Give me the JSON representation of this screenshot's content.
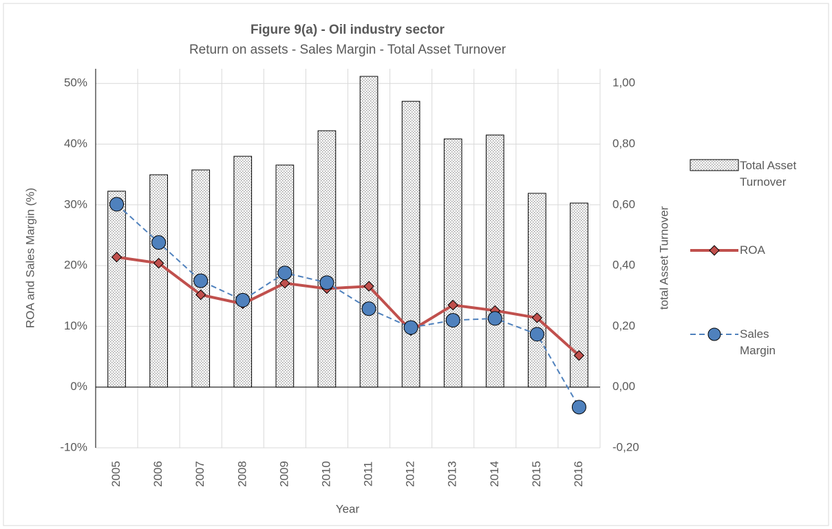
{
  "chart_data": {
    "type": "bar-line",
    "title": "Figure 9(a) - Oil industry sector",
    "subtitle": "Return on assets - Sales Margin - Total Asset Turnover",
    "x_label": "Year",
    "y_label": "ROA and Sales Margin (%)",
    "y2_label": "total Asset Turnover",
    "categories": [
      "2005",
      "2006",
      "2007",
      "2008",
      "2009",
      "2010",
      "2011",
      "2012",
      "2013",
      "2014",
      "2015",
      "2016"
    ],
    "series": [
      {
        "name": "Total Asset Turnover",
        "type": "bar",
        "axis": "y2",
        "color": "#595959",
        "values": [
          0.645,
          0.699,
          0.715,
          0.76,
          0.731,
          0.844,
          1.023,
          0.941,
          0.817,
          0.83,
          0.638,
          0.606
        ]
      },
      {
        "name": "ROA",
        "type": "line",
        "color": "#c0504d",
        "values": [
          21.4,
          20.4,
          15.2,
          13.7,
          17.1,
          16.2,
          16.6,
          9.3,
          13.5,
          12.6,
          11.4,
          5.2
        ]
      },
      {
        "name": "Sales Margin",
        "type": "line",
        "dashed": true,
        "color": "#4f81bd",
        "values": [
          30.1,
          23.8,
          17.5,
          14.3,
          18.8,
          17.2,
          12.9,
          9.8,
          11.0,
          11.3,
          8.7,
          -3.3
        ]
      }
    ],
    "ylim": [
      -10,
      52.4
    ],
    "yticks": [
      {
        "value": -10,
        "label": "-10%"
      },
      {
        "value": 0,
        "label": "0%"
      },
      {
        "value": 10,
        "label": "10%"
      },
      {
        "value": 20,
        "label": "20%"
      },
      {
        "value": 30,
        "label": "30%"
      },
      {
        "value": 40,
        "label": "40%"
      },
      {
        "value": 50,
        "label": "50%"
      }
    ],
    "y2lim": [
      -0.2,
      1.048
    ],
    "y2ticks": [
      {
        "value": -0.2,
        "label": "-0,20"
      },
      {
        "value": 0,
        "label": "0,00"
      },
      {
        "value": 0.2,
        "label": "0,20"
      },
      {
        "value": 0.4,
        "label": "0,40"
      },
      {
        "value": 0.6,
        "label": "0,60"
      },
      {
        "value": 0.8,
        "label": "0,80"
      },
      {
        "value": 1.0,
        "label": "1,00"
      }
    ],
    "grid": true
  }
}
